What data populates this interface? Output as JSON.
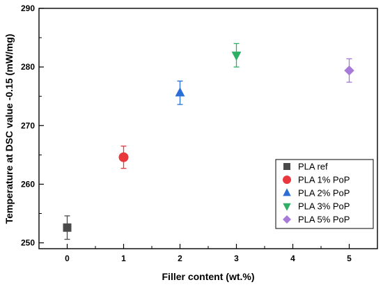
{
  "chart_data": {
    "type": "scatter",
    "xlabel": "Filler content (wt.%)",
    "ylabel": "Temperature at DSC value -0.15 (mW/mg)",
    "xlim": [
      -0.5,
      5.5
    ],
    "ylim": [
      249,
      290
    ],
    "x_ticks": [
      0,
      1,
      2,
      3,
      4,
      5
    ],
    "y_ticks": [
      250,
      260,
      270,
      280,
      290
    ],
    "grid": false,
    "legend_position": "lower-right",
    "series": [
      {
        "name": "PLA ref",
        "x": 0,
        "y": 252.6,
        "error": 2.0,
        "color": "#4a4a4a",
        "marker": "square"
      },
      {
        "name": "PLA 1% PoP",
        "x": 1,
        "y": 264.6,
        "error": 1.9,
        "color": "#e8373d",
        "marker": "circle"
      },
      {
        "name": "PLA 2% PoP",
        "x": 2,
        "y": 275.6,
        "error": 2.0,
        "color": "#2b6fd6",
        "marker": "triangle-up"
      },
      {
        "name": "PLA 3% PoP",
        "x": 3,
        "y": 282.0,
        "error": 2.0,
        "color": "#2fae66",
        "marker": "triangle-down"
      },
      {
        "name": "PLA 5% PoP",
        "x": 5,
        "y": 279.4,
        "error": 2.0,
        "color": "#a779d9",
        "marker": "diamond"
      }
    ]
  }
}
